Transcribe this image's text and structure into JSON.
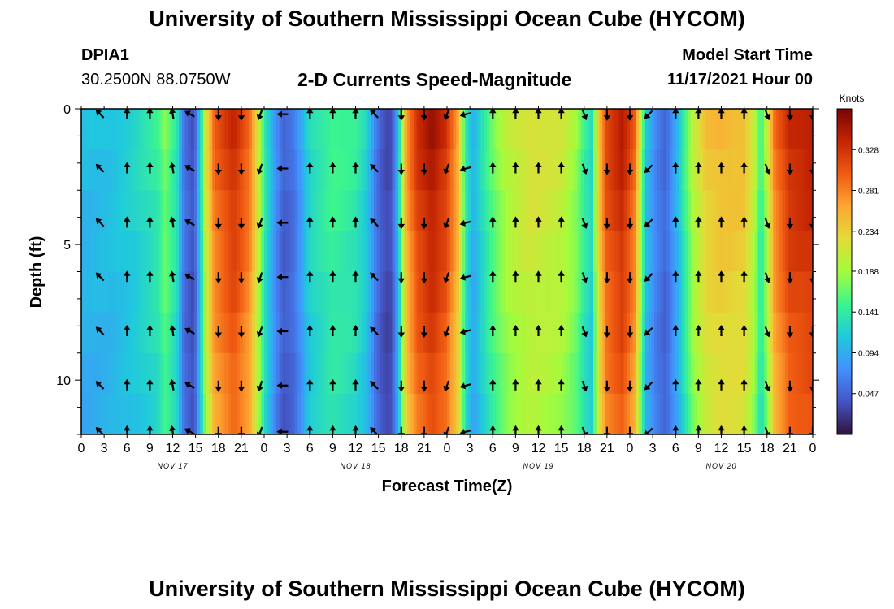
{
  "page": {
    "title_top": "University of Southern Mississippi Ocean Cube (HYCOM)",
    "title_bottom": "University of Southern Mississippi Ocean Cube (HYCOM)",
    "station_name": "DPIA1",
    "station_coords": "30.2500N  88.0750W",
    "model_start_label": "Model Start Time",
    "model_start_value": "11/17/2021 Hour 00"
  },
  "chart_data": {
    "type": "heatmap",
    "title": "2-D Currents Speed-Magnitude",
    "xlabel": "Forecast Time(Z)",
    "ylabel": "Depth (ft)",
    "x_tick_labels": [
      "0",
      "3",
      "6",
      "9",
      "12",
      "15",
      "18",
      "21",
      "0",
      "3",
      "6",
      "9",
      "12",
      "15",
      "18",
      "21",
      "0",
      "3",
      "6",
      "9",
      "12",
      "15",
      "18",
      "21",
      "0",
      "3",
      "6",
      "9",
      "12",
      "15",
      "18",
      "21",
      "0"
    ],
    "x_hours": [
      0,
      3,
      6,
      9,
      12,
      15,
      18,
      21,
      24,
      27,
      30,
      33,
      36,
      39,
      42,
      45,
      48,
      51,
      54,
      57,
      60,
      63,
      66,
      69,
      72,
      75,
      78,
      81,
      84,
      87,
      90,
      93,
      96
    ],
    "date_labels": [
      {
        "label": "NOV 17",
        "hour": 12
      },
      {
        "label": "NOV 18",
        "hour": 36
      },
      {
        "label": "NOV 19",
        "hour": 60
      },
      {
        "label": "NOV 20",
        "hour": 84
      }
    ],
    "y_tick_labels": [
      "0",
      "5",
      "10"
    ],
    "y_ticks": [
      0,
      5,
      10
    ],
    "ylim": [
      0,
      12
    ],
    "xlim": [
      0,
      96
    ],
    "colorbar": {
      "label": "Knots",
      "tick_labels": [
        "0.328",
        "0.281",
        "0.234",
        "0.188",
        "0.141",
        "0.094",
        "0.047"
      ],
      "ticks": [
        0.328,
        0.281,
        0.234,
        0.188,
        0.141,
        0.094,
        0.047
      ],
      "range": [
        0.0,
        0.375
      ],
      "colors": [
        "#30123b",
        "#4454c4",
        "#4390fe",
        "#1fc9dd",
        "#3bf58f",
        "#a4fc3c",
        "#e2dc38",
        "#fea632",
        "#f05b12",
        "#c42503",
        "#7a0403"
      ]
    },
    "speed_by_hour": [
      {
        "hour": 0,
        "speed": 0.105
      },
      {
        "hour": 4,
        "speed": 0.112
      },
      {
        "hour": 7,
        "speed": 0.125
      },
      {
        "hour": 10,
        "speed": 0.145
      },
      {
        "hour": 11,
        "speed": 0.175
      },
      {
        "hour": 12.5,
        "speed": 0.14
      },
      {
        "hour": 13.5,
        "speed": 0.06
      },
      {
        "hour": 14.8,
        "speed": 0.035
      },
      {
        "hour": 15.6,
        "speed": 0.12
      },
      {
        "hour": 16.4,
        "speed": 0.22
      },
      {
        "hour": 17.5,
        "speed": 0.3
      },
      {
        "hour": 20,
        "speed": 0.34
      },
      {
        "hour": 22,
        "speed": 0.3
      },
      {
        "hour": 23,
        "speed": 0.24
      },
      {
        "hour": 24,
        "speed": 0.15
      },
      {
        "hour": 25.2,
        "speed": 0.09
      },
      {
        "hour": 26.5,
        "speed": 0.045
      },
      {
        "hour": 28,
        "speed": 0.06
      },
      {
        "hour": 30,
        "speed": 0.13
      },
      {
        "hour": 33,
        "speed": 0.155
      },
      {
        "hour": 36,
        "speed": 0.145
      },
      {
        "hour": 37.5,
        "speed": 0.12
      },
      {
        "hour": 38.5,
        "speed": 0.07
      },
      {
        "hour": 39.5,
        "speed": 0.04
      },
      {
        "hour": 40.5,
        "speed": 0.03
      },
      {
        "hour": 41.6,
        "speed": 0.1
      },
      {
        "hour": 42.5,
        "speed": 0.26
      },
      {
        "hour": 44,
        "speed": 0.33
      },
      {
        "hour": 46,
        "speed": 0.36
      },
      {
        "hour": 48,
        "speed": 0.33
      },
      {
        "hour": 49.5,
        "speed": 0.26
      },
      {
        "hour": 50.5,
        "speed": 0.14
      },
      {
        "hour": 51.5,
        "speed": 0.1
      },
      {
        "hour": 52.5,
        "speed": 0.13
      },
      {
        "hour": 54,
        "speed": 0.17
      },
      {
        "hour": 56,
        "speed": 0.205
      },
      {
        "hour": 59,
        "speed": 0.225
      },
      {
        "hour": 63,
        "speed": 0.215
      },
      {
        "hour": 65,
        "speed": 0.185
      },
      {
        "hour": 66,
        "speed": 0.15
      },
      {
        "hour": 67,
        "speed": 0.13
      },
      {
        "hour": 67.8,
        "speed": 0.24
      },
      {
        "hour": 69,
        "speed": 0.32
      },
      {
        "hour": 71,
        "speed": 0.35
      },
      {
        "hour": 72.6,
        "speed": 0.3
      },
      {
        "hour": 73.4,
        "speed": 0.2
      },
      {
        "hour": 74.2,
        "speed": 0.11
      },
      {
        "hour": 75.5,
        "speed": 0.07
      },
      {
        "hour": 76.7,
        "speed": 0.05
      },
      {
        "hour": 78,
        "speed": 0.095
      },
      {
        "hour": 79.2,
        "speed": 0.15
      },
      {
        "hour": 80.2,
        "speed": 0.2
      },
      {
        "hour": 82,
        "speed": 0.245
      },
      {
        "hour": 84,
        "speed": 0.255
      },
      {
        "hour": 87,
        "speed": 0.25
      },
      {
        "hour": 88.5,
        "speed": 0.2
      },
      {
        "hour": 89.2,
        "speed": 0.145
      },
      {
        "hour": 90,
        "speed": 0.2
      },
      {
        "hour": 91,
        "speed": 0.29
      },
      {
        "hour": 93,
        "speed": 0.34
      },
      {
        "hour": 96,
        "speed": 0.35
      }
    ],
    "arrow_depths": [
      0.2,
      2.2,
      4.2,
      6.2,
      8.2,
      10.2,
      11.9
    ],
    "arrows": [
      {
        "hour": 2.5,
        "dir": 315
      },
      {
        "hour": 6,
        "dir": 0
      },
      {
        "hour": 9,
        "dir": 0
      },
      {
        "hour": 12,
        "dir": 350
      },
      {
        "hour": 14.3,
        "dir": 300
      },
      {
        "hour": 18,
        "dir": 180
      },
      {
        "hour": 21,
        "dir": 180
      },
      {
        "hour": 23.5,
        "dir": 200
      },
      {
        "hour": 26.5,
        "dir": 270
      },
      {
        "hour": 30,
        "dir": 0
      },
      {
        "hour": 33,
        "dir": 0
      },
      {
        "hour": 36,
        "dir": 0
      },
      {
        "hour": 38.5,
        "dir": 315
      },
      {
        "hour": 42,
        "dir": 180
      },
      {
        "hour": 45,
        "dir": 180
      },
      {
        "hour": 48,
        "dir": 200
      },
      {
        "hour": 50.5,
        "dir": 255
      },
      {
        "hour": 54,
        "dir": 0
      },
      {
        "hour": 57,
        "dir": 0
      },
      {
        "hour": 60,
        "dir": 0
      },
      {
        "hour": 63,
        "dir": 0
      },
      {
        "hour": 66,
        "dir": 160
      },
      {
        "hour": 69,
        "dir": 180
      },
      {
        "hour": 72,
        "dir": 180
      },
      {
        "hour": 74.5,
        "dir": 225
      },
      {
        "hour": 78,
        "dir": 0
      },
      {
        "hour": 81,
        "dir": 0
      },
      {
        "hour": 84,
        "dir": 0
      },
      {
        "hour": 87,
        "dir": 0
      },
      {
        "hour": 90,
        "dir": 160
      },
      {
        "hour": 93,
        "dir": 180
      },
      {
        "hour": 96,
        "dir": 180
      }
    ]
  }
}
